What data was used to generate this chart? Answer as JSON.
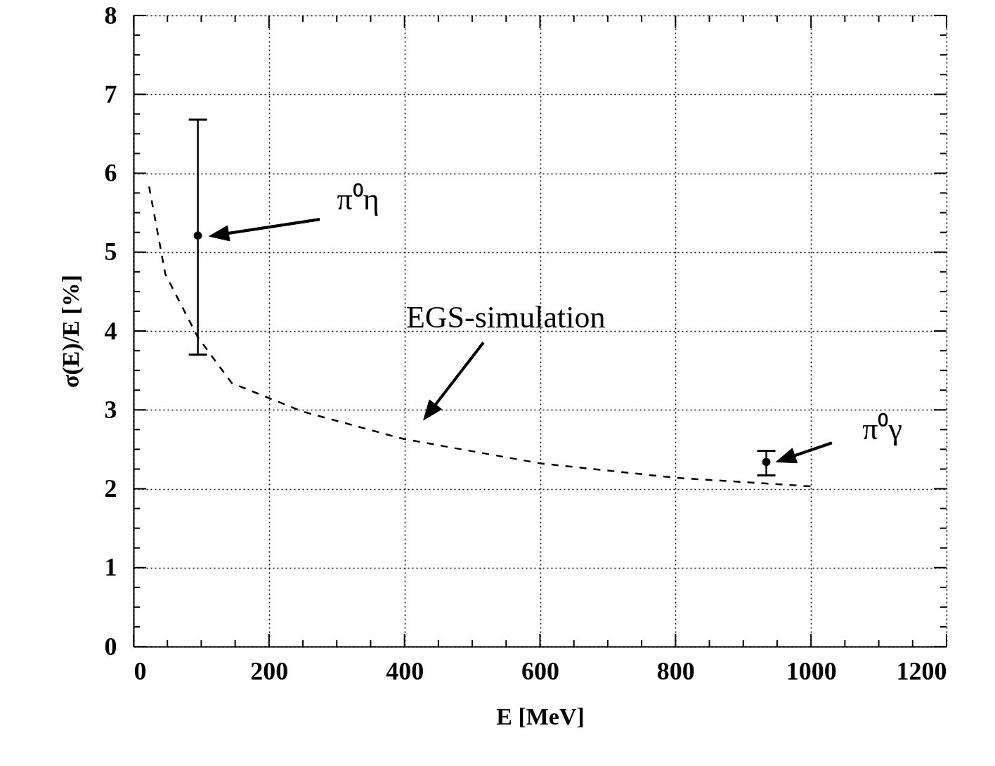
{
  "chart_data": {
    "type": "scatter",
    "xlabel": "E  [MeV]",
    "ylabel": "σ(E)/E  [%]",
    "xlim": [
      0,
      1200
    ],
    "ylim": [
      0,
      8
    ],
    "xticks": [
      0,
      {
        "value": 50,
        "label": null
      },
      200,
      {
        "value": 100,
        "label": null
      },
      {
        "value": 150,
        "label": null
      },
      {
        "value": 250,
        "label": null
      },
      {
        "value": 300,
        "label": null
      },
      {
        "value": 350,
        "label": null
      },
      400,
      {
        "value": 450,
        "label": null
      },
      {
        "value": 500,
        "label": null
      },
      {
        "value": 550,
        "label": null
      },
      600,
      {
        "value": 650,
        "label": null
      },
      {
        "value": 700,
        "label": null
      },
      {
        "value": 750,
        "label": null
      },
      800,
      {
        "value": 850,
        "label": null
      },
      {
        "value": 900,
        "label": null
      },
      {
        "value": 950,
        "label": null
      },
      1000,
      {
        "value": 1050,
        "label": null
      },
      {
        "value": 1100,
        "label": null
      },
      {
        "value": 1150,
        "label": null
      },
      1200
    ],
    "yticks": [
      0,
      {
        "value": 0.25,
        "label": null
      },
      {
        "value": 0.5,
        "label": null
      },
      {
        "value": 0.75,
        "label": null
      },
      1,
      {
        "value": 1.25,
        "label": null
      },
      {
        "value": 1.5,
        "label": null
      },
      {
        "value": 1.75,
        "label": null
      },
      2,
      {
        "value": 2.25,
        "label": null
      },
      {
        "value": 2.5,
        "label": null
      },
      {
        "value": 2.75,
        "label": null
      },
      3,
      {
        "value": 3.25,
        "label": null
      },
      {
        "value": 3.5,
        "label": null
      },
      {
        "value": 3.75,
        "label": null
      },
      4,
      {
        "value": 4.25,
        "label": null
      },
      {
        "value": 4.5,
        "label": null
      },
      {
        "value": 4.75,
        "label": null
      },
      5,
      {
        "value": 5.25,
        "label": null
      },
      {
        "value": 5.5,
        "label": null
      },
      {
        "value": 5.75,
        "label": null
      },
      6,
      {
        "value": 6.25,
        "label": null
      },
      {
        "value": 6.5,
        "label": null
      },
      {
        "value": 6.75,
        "label": null
      },
      7,
      {
        "value": 7.25,
        "label": null
      },
      {
        "value": 7.5,
        "label": null
      },
      {
        "value": 7.75,
        "label": null
      },
      8
    ],
    "grid": true,
    "series": [
      {
        "color": "#000000",
        "marker": "circle",
        "x": [
          95,
          934
        ],
        "values": [
          5.21,
          2.34
        ],
        "errors": [
          [
            3.7,
            6.68
          ],
          [
            2.17,
            2.48
          ]
        ]
      },
      {
        "type": "line",
        "color": "#000000",
        "line_style": "dashed",
        "marker": "none",
        "x": [
          23,
          47,
          95,
          145,
          249,
          399,
          602,
          799,
          1001
        ],
        "values": [
          5.83,
          4.72,
          3.92,
          3.34,
          2.98,
          2.63,
          2.32,
          2.14,
          2.03
        ]
      }
    ],
    "annotations": [
      "π⁰η",
      "EGS-simulation",
      "π⁰γ"
    ]
  }
}
